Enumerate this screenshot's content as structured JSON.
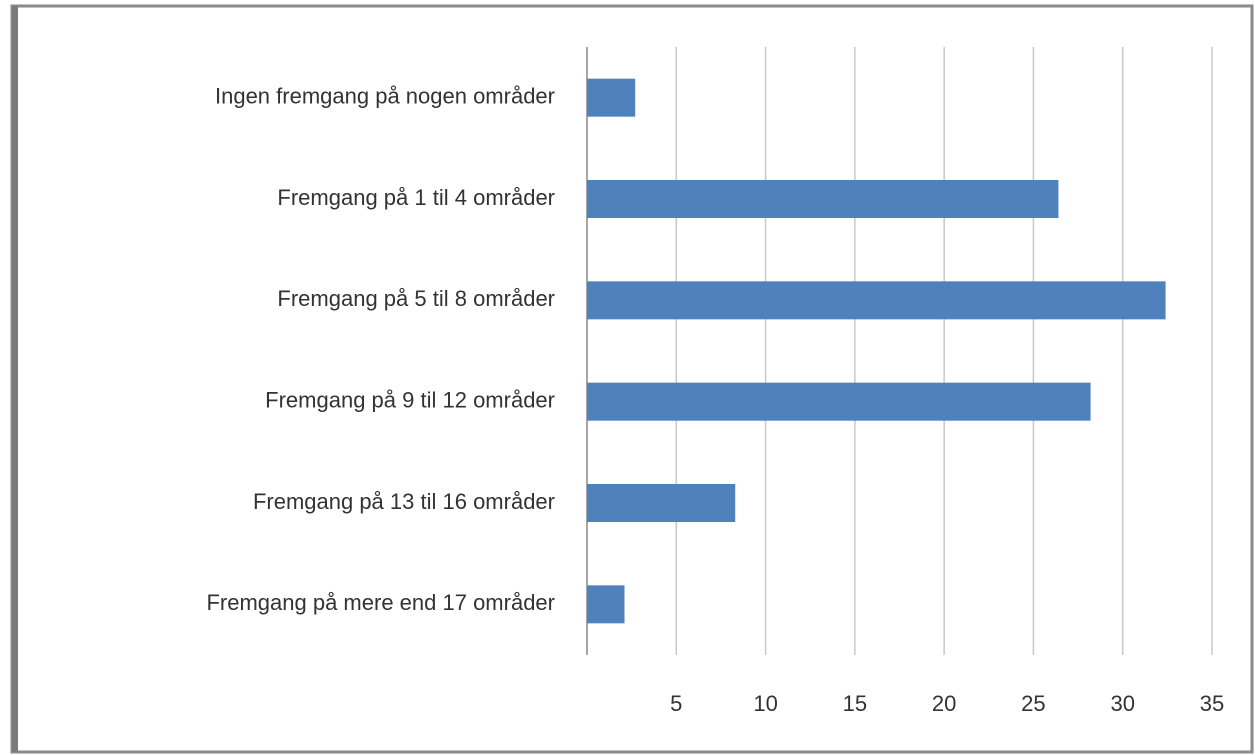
{
  "chart_data": {
    "type": "bar",
    "orientation": "horizontal",
    "categories": [
      "Ingen fremgang på nogen områder",
      "Fremgang på 1 til 4 områder",
      "Fremgang på 5 til 8 områder",
      "Fremgang på 9 til 12 områder",
      "Fremgang på 13 til 16 områder",
      "Fremgang på mere end 17 områder"
    ],
    "values": [
      2.7,
      26.4,
      32.4,
      28.2,
      8.3,
      2.1
    ],
    "color": "#4f81bd",
    "xlim": [
      0,
      35
    ],
    "xticks": [
      5,
      10,
      15,
      20,
      25,
      30,
      35
    ],
    "grid": true
  }
}
